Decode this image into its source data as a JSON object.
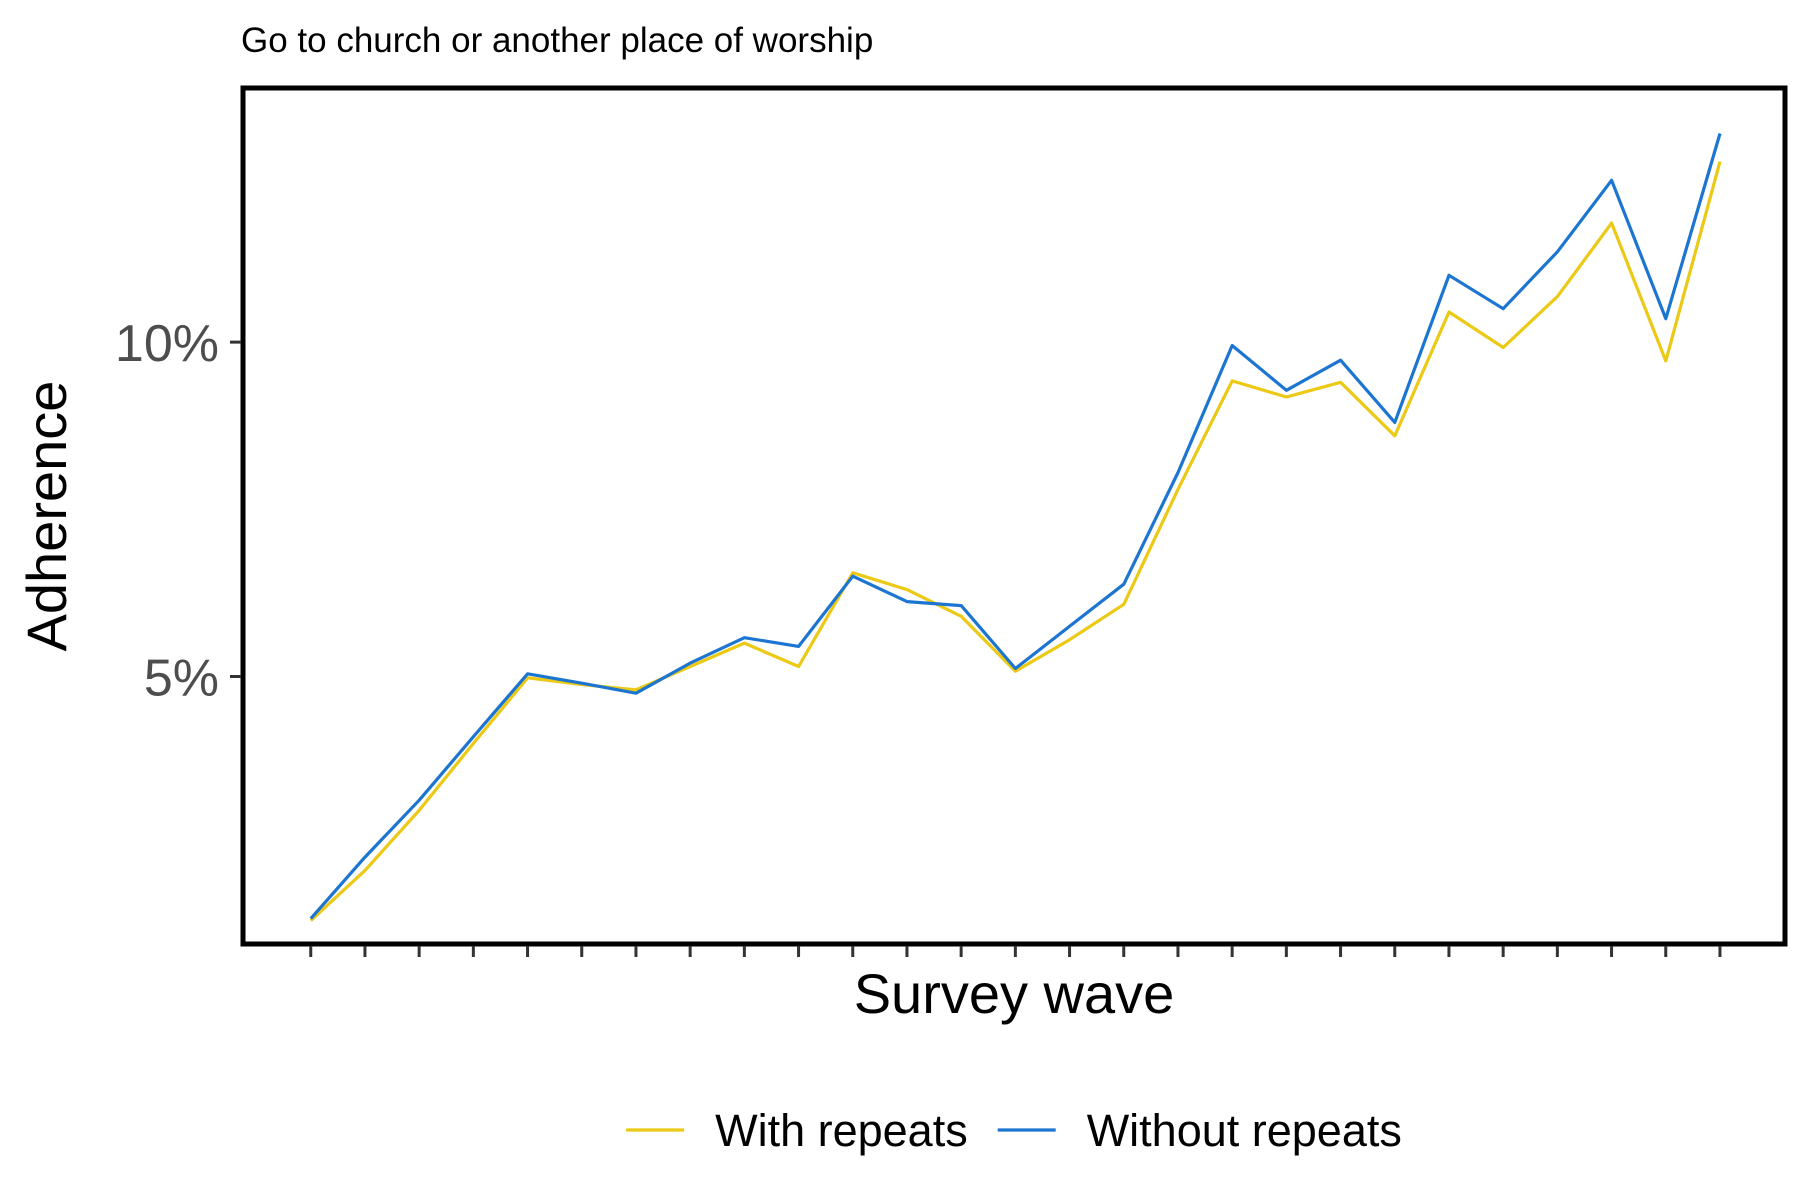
{
  "chart_data": {
    "type": "line",
    "title": "Go to church or another place of worship",
    "xlabel": "Survey wave",
    "ylabel": "Adherence",
    "x": [
      1,
      2,
      3,
      4,
      5,
      6,
      7,
      8,
      9,
      10,
      11,
      12,
      13,
      14,
      15,
      16,
      17,
      18,
      19,
      20,
      21,
      22,
      23,
      24,
      25,
      26,
      27
    ],
    "x_tick_labels": [],
    "y_ticks": [
      5,
      10
    ],
    "y_tick_labels": [
      "5%",
      "10%"
    ],
    "ylim": [
      1.0,
      13.8
    ],
    "xlim": [
      -0.25,
      28.2
    ],
    "grid": false,
    "legend_position": "bottom",
    "series": [
      {
        "name": "With repeats",
        "color": "#EBC915",
        "values": [
          1.35,
          2.1,
          3.0,
          4.0,
          4.98,
          4.88,
          4.8,
          5.15,
          5.5,
          5.15,
          6.55,
          6.3,
          5.9,
          5.08,
          5.55,
          6.08,
          7.8,
          9.42,
          9.18,
          9.4,
          8.6,
          10.45,
          9.92,
          10.68,
          11.78,
          9.72,
          12.7
        ]
      },
      {
        "name": "Without repeats",
        "color": "#1C75D1",
        "values": [
          1.38,
          2.3,
          3.15,
          4.1,
          5.04,
          4.9,
          4.75,
          5.2,
          5.58,
          5.45,
          6.5,
          6.12,
          6.06,
          5.12,
          5.75,
          6.38,
          8.05,
          9.95,
          9.28,
          9.73,
          8.8,
          11.0,
          10.5,
          11.35,
          12.42,
          10.35,
          13.12
        ]
      }
    ]
  }
}
